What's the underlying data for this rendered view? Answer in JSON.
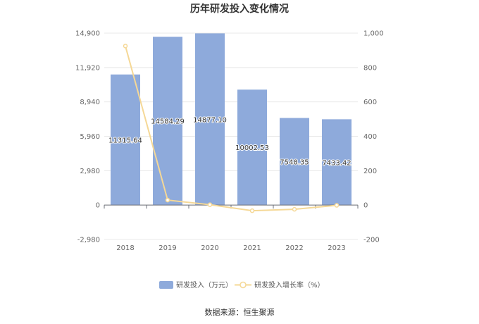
{
  "chart_data": {
    "type": "bar",
    "title": "历年研发投入变化情况",
    "categories": [
      "2018",
      "2019",
      "2020",
      "2021",
      "2022",
      "2023"
    ],
    "series": [
      {
        "name": "研发投入（万元）",
        "type": "bar",
        "axis": "left",
        "color": "#8eaadb",
        "values": [
          11315.64,
          14584.29,
          14877.1,
          10002.53,
          7548.35,
          7433.42
        ],
        "labels": [
          "11315.64",
          "14584.29",
          "14877.10",
          "10002.53",
          "7548.35",
          "7433.42"
        ]
      },
      {
        "name": "研发投入增长率（%）",
        "type": "line",
        "axis": "right",
        "color": "#f5d896",
        "values": [
          925,
          28.9,
          2.0,
          -32.8,
          -24.5,
          -1.5
        ]
      }
    ],
    "left_axis": {
      "ylim": [
        -2980,
        14900
      ],
      "ticks": [
        -2980,
        0,
        2980,
        5960,
        8940,
        11920,
        14900
      ],
      "tick_labels": [
        "-2,980",
        "0",
        "2,980",
        "5,960",
        "8,940",
        "11,920",
        "14,900"
      ]
    },
    "right_axis": {
      "ylim": [
        -200,
        1000
      ],
      "ticks": [
        -200,
        0,
        200,
        400,
        600,
        800,
        1000
      ],
      "tick_labels": [
        "-200",
        "0",
        "200",
        "400",
        "600",
        "800",
        "1,000"
      ]
    },
    "grid": true,
    "legend_position": "bottom"
  },
  "source_text": "数据来源：恒生聚源"
}
